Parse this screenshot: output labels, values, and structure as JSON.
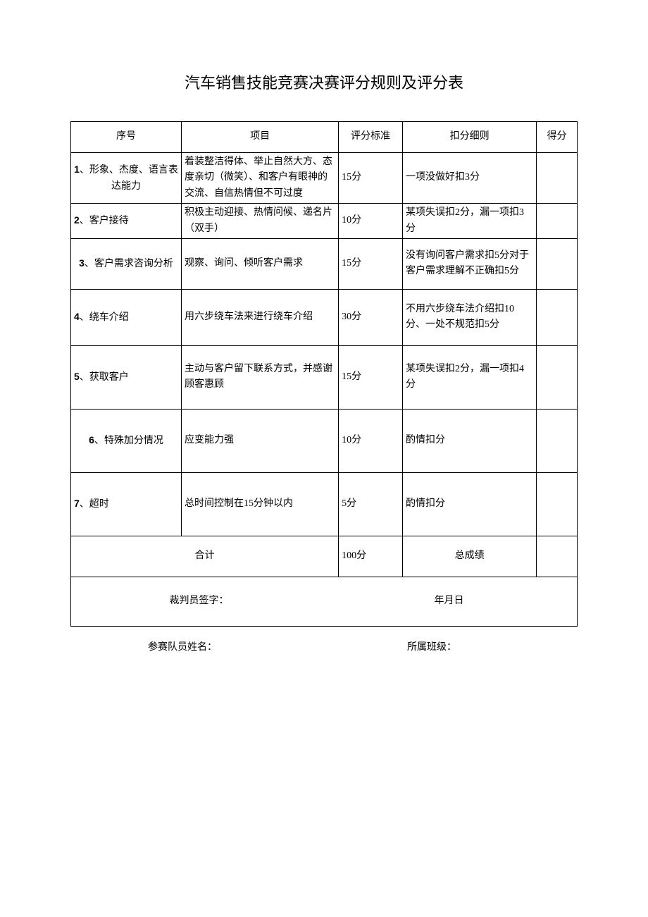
{
  "title": "汽车销售技能竞赛决赛评分规则及评分表",
  "headers": {
    "seq": "序号",
    "item": "项目",
    "std": "评分标准",
    "deduct": "扣分细则",
    "score": "得分"
  },
  "rows": [
    {
      "num": "1",
      "seq": "、形象、杰度、语言表达能力",
      "seqAlign": "center",
      "item": "着装整洁得体、举止自然大方、态度亲切（微笑）、和客户有眼神的交流、自信热情但不可过度",
      "std": "15分",
      "deduct": "一项没做好扣3分"
    },
    {
      "num": "2",
      "seq": "、客户接待",
      "seqAlign": "left",
      "item": "积极主动迎接、热情问候、递名片（双手）",
      "std": "10分",
      "deduct": "某项失误扣2分，漏一项扣3分"
    },
    {
      "num": "3",
      "seq": "、客户需求咨询分析",
      "seqAlign": "center",
      "item": "观察、询问、倾听客户需求",
      "std": "15分",
      "deduct": "没有询问客户需求扣5分对于客户需求理解不正确扣5分"
    },
    {
      "num": "4",
      "seq": "、绕车介绍",
      "seqAlign": "left",
      "item": "用六步绕车法来进行绕车介绍",
      "std": "30分",
      "deduct": "不用六步绕车法介绍扣10分、一处不规范扣5分"
    },
    {
      "num": "5",
      "seq": "、获取客户",
      "seqAlign": "left",
      "item": "主动与客户留下联系方式，并感谢顾客惠顾",
      "std": "15分",
      "deduct": "某项失误扣2分，漏一项扣4分"
    },
    {
      "num": "6",
      "seq": "、特殊加分情况",
      "seqAlign": "center",
      "item": "应变能力强",
      "std": "10分",
      "deduct": "酌情扣分"
    },
    {
      "num": "7",
      "seq": "、超时",
      "seqAlign": "left",
      "item": "总时间控制在15分钟以内",
      "std": "5分",
      "deduct": "酌情扣分"
    }
  ],
  "total": {
    "label": "合计",
    "value": "100分",
    "resultLabel": "总成绩"
  },
  "sign": {
    "judge": "裁判员签字：",
    "date": "年月日"
  },
  "footer": {
    "name": "参赛队员姓名：",
    "class": "所属班级："
  }
}
